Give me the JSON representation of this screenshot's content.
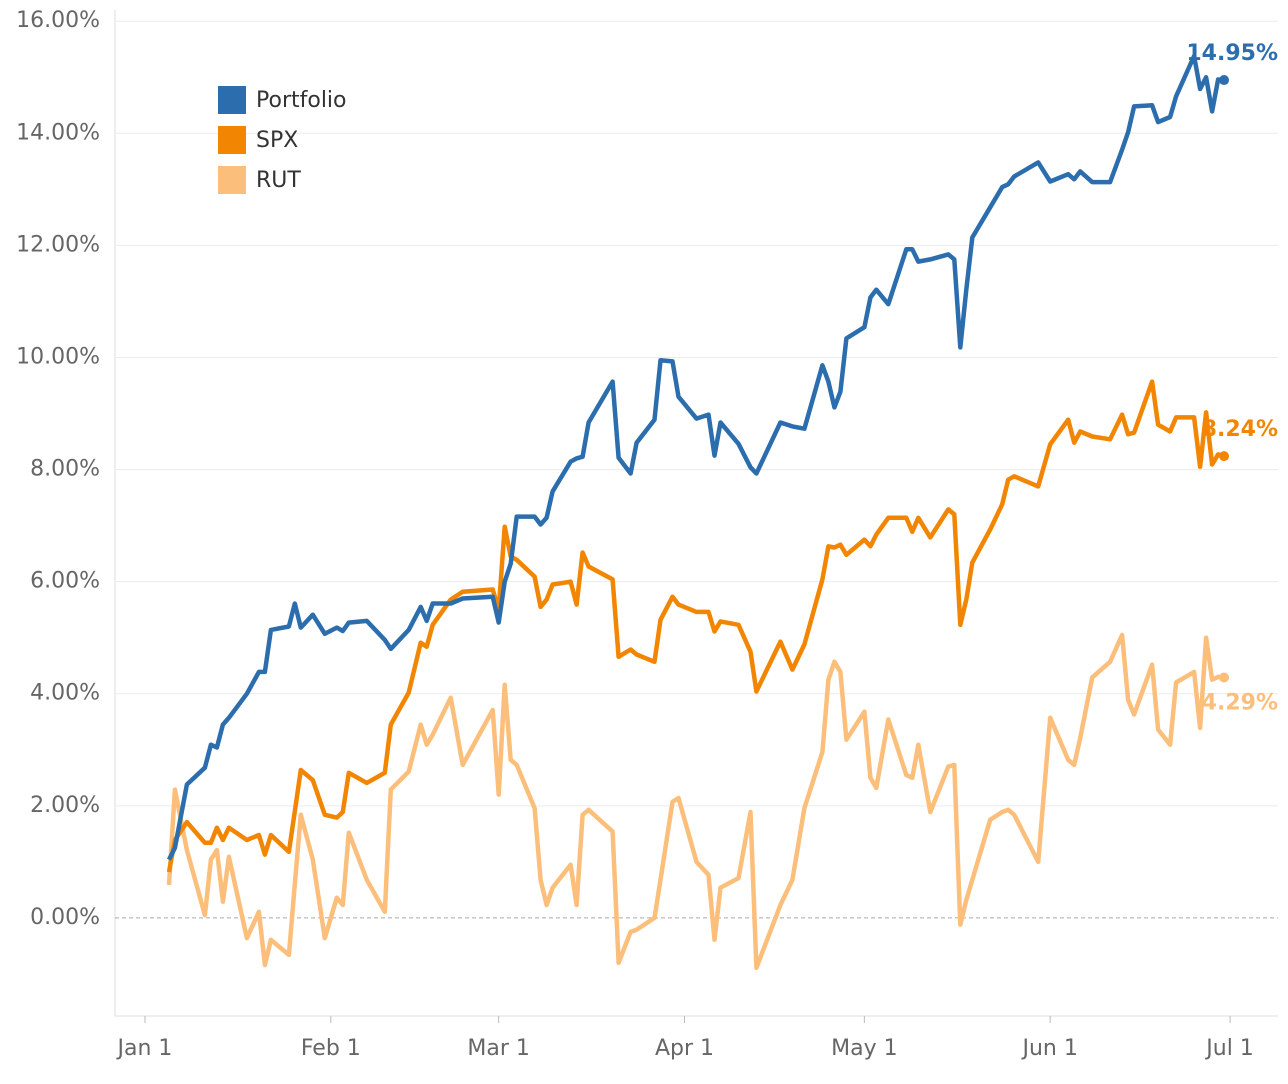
{
  "chart_data": {
    "type": "line",
    "x": [
      "Jan 5",
      "Jan 6",
      "Jan 8",
      "Jan 11",
      "Jan 12",
      "Jan 13",
      "Jan 14",
      "Jan 15",
      "Jan 18",
      "Jan 20",
      "Jan 21",
      "Jan 22",
      "Jan 25",
      "Jan 26",
      "Jan 27",
      "Jan 29",
      "Jan 31",
      "Feb 2",
      "Feb 3",
      "Feb 4",
      "Feb 7",
      "Feb 10",
      "Feb 11",
      "Feb 14",
      "Feb 16",
      "Feb 17",
      "Feb 18",
      "Feb 21",
      "Feb 23",
      "Feb 28",
      "Mar 1",
      "Mar 2",
      "Mar 3",
      "Mar 4",
      "Mar 7",
      "Mar 8",
      "Mar 9",
      "Mar 10",
      "Mar 13",
      "Mar 14",
      "Mar 15",
      "Mar 16",
      "Mar 20",
      "Mar 21",
      "Mar 23",
      "Mar 24",
      "Mar 27",
      "Mar 28",
      "Mar 30",
      "Mar 31",
      "Apr 3",
      "Apr 5",
      "Apr 6",
      "Apr 7",
      "Apr 10",
      "Apr 12",
      "Apr 13",
      "Apr 17",
      "Apr 19",
      "Apr 21",
      "Apr 24",
      "Apr 25",
      "Apr 26",
      "Apr 27",
      "Apr 28",
      "May 1",
      "May 2",
      "May 3",
      "May 5",
      "May 8",
      "May 9",
      "May 10",
      "May 12",
      "May 15",
      "May 16",
      "May 17",
      "May 18",
      "May 19",
      "May 22",
      "May 24",
      "May 25",
      "May 26",
      "May 30",
      "Jun 1",
      "Jun 4",
      "Jun 5",
      "Jun 6",
      "Jun 8",
      "Jun 11",
      "Jun 13",
      "Jun 14",
      "Jun 15",
      "Jun 18",
      "Jun 19",
      "Jun 21",
      "Jun 22",
      "Jun 25",
      "Jun 26",
      "Jun 27",
      "Jun 28",
      "Jun 29",
      "Jun 30"
    ],
    "series": [
      {
        "name": "Portfolio",
        "color": "#2c6ead",
        "end_label": "14.95%",
        "values": [
          1.04,
          1.25,
          2.38,
          2.68,
          3.09,
          3.04,
          3.45,
          3.57,
          4.0,
          4.39,
          4.39,
          5.14,
          5.2,
          5.61,
          5.18,
          5.41,
          5.07,
          5.18,
          5.12,
          5.27,
          5.3,
          4.96,
          4.8,
          5.14,
          5.55,
          5.3,
          5.61,
          5.61,
          5.7,
          5.73,
          5.27,
          6.0,
          6.32,
          7.16,
          7.16,
          7.02,
          7.14,
          7.61,
          8.14,
          8.2,
          8.23,
          8.84,
          9.57,
          8.21,
          7.93,
          8.48,
          8.89,
          9.95,
          9.93,
          9.3,
          8.91,
          8.98,
          8.25,
          8.84,
          8.46,
          8.04,
          7.93,
          8.84,
          8.77,
          8.73,
          9.86,
          9.57,
          9.11,
          9.39,
          10.34,
          10.54,
          11.07,
          11.21,
          10.95,
          11.93,
          11.93,
          11.71,
          11.75,
          11.84,
          11.75,
          10.18,
          11.21,
          12.14,
          12.68,
          13.04,
          13.09,
          13.23,
          13.48,
          13.14,
          13.27,
          13.18,
          13.32,
          13.13,
          13.13,
          13.71,
          14.02,
          14.48,
          14.5,
          14.2,
          14.29,
          14.66,
          15.38,
          14.79,
          15.0,
          14.39,
          14.96,
          14.95
        ]
      },
      {
        "name": "SPX",
        "color": "#f28602",
        "end_label": "8.24%",
        "values": [
          0.82,
          1.39,
          1.71,
          1.34,
          1.34,
          1.61,
          1.39,
          1.61,
          1.39,
          1.48,
          1.13,
          1.48,
          1.18,
          1.9,
          2.64,
          2.46,
          1.84,
          1.79,
          1.89,
          2.59,
          2.41,
          2.59,
          3.45,
          4.02,
          4.91,
          4.84,
          5.23,
          5.68,
          5.82,
          5.86,
          5.5,
          6.98,
          6.45,
          6.39,
          6.09,
          5.55,
          5.68,
          5.95,
          6.0,
          5.59,
          6.52,
          6.27,
          6.04,
          4.66,
          4.79,
          4.7,
          4.57,
          5.32,
          5.73,
          5.59,
          5.46,
          5.46,
          5.11,
          5.29,
          5.23,
          4.75,
          4.04,
          4.93,
          4.43,
          4.88,
          6.04,
          6.63,
          6.61,
          6.66,
          6.48,
          6.75,
          6.63,
          6.84,
          7.14,
          7.14,
          6.89,
          7.14,
          6.79,
          7.29,
          7.2,
          5.23,
          5.68,
          6.34,
          6.93,
          7.38,
          7.82,
          7.88,
          7.7,
          8.45,
          8.89,
          8.48,
          8.68,
          8.59,
          8.54,
          8.98,
          8.63,
          8.66,
          9.57,
          8.8,
          8.68,
          8.93,
          8.93,
          8.05,
          9.02,
          8.09,
          8.27,
          8.24
        ]
      },
      {
        "name": "RUT",
        "color": "#fcbf7b",
        "end_label": "4.29%",
        "values": [
          0.59,
          2.29,
          1.21,
          0.05,
          1.04,
          1.21,
          0.29,
          1.09,
          -0.36,
          0.11,
          -0.84,
          -0.39,
          -0.66,
          0.6,
          1.84,
          1.04,
          -0.36,
          0.36,
          0.23,
          1.52,
          0.68,
          0.11,
          2.29,
          2.61,
          3.45,
          3.09,
          3.27,
          3.93,
          2.73,
          3.71,
          2.2,
          4.16,
          2.82,
          2.73,
          1.96,
          0.68,
          0.23,
          0.54,
          0.95,
          0.23,
          1.84,
          1.93,
          1.54,
          -0.8,
          -0.25,
          -0.21,
          0.0,
          0.68,
          2.07,
          2.14,
          1.0,
          0.77,
          -0.39,
          0.54,
          0.71,
          1.89,
          -0.89,
          0.23,
          0.68,
          1.96,
          2.96,
          4.25,
          4.57,
          4.39,
          3.18,
          3.68,
          2.5,
          2.32,
          3.54,
          2.55,
          2.5,
          3.09,
          1.89,
          2.7,
          2.73,
          -0.12,
          0.32,
          0.68,
          1.75,
          1.89,
          1.93,
          1.84,
          1.0,
          3.57,
          2.82,
          2.73,
          3.21,
          4.29,
          4.57,
          5.05,
          3.89,
          3.63,
          4.52,
          3.36,
          3.09,
          4.2,
          4.39,
          3.39,
          5.0,
          4.25,
          4.3,
          4.29
        ]
      }
    ],
    "xlim": [
      "Dec 27",
      "Jul 9"
    ],
    "xticks": [
      "Jan 1",
      "Feb 1",
      "Mar 1",
      "Apr 1",
      "May 1",
      "Jun 1",
      "Jul 1"
    ],
    "ylim": [
      -1.75,
      16.2
    ],
    "yticks": [
      {
        "value": 0,
        "label": "0.00%"
      },
      {
        "value": 2,
        "label": "2.00%"
      },
      {
        "value": 4,
        "label": "4.00%"
      },
      {
        "value": 6,
        "label": "6.00%"
      },
      {
        "value": 8,
        "label": "8.00%"
      },
      {
        "value": 10,
        "label": "10.00%"
      },
      {
        "value": 12,
        "label": "12.00%"
      },
      {
        "value": 14,
        "label": "14.00%"
      },
      {
        "value": 16,
        "label": "16.00%"
      }
    ],
    "grid": true,
    "legend": "upper left"
  }
}
